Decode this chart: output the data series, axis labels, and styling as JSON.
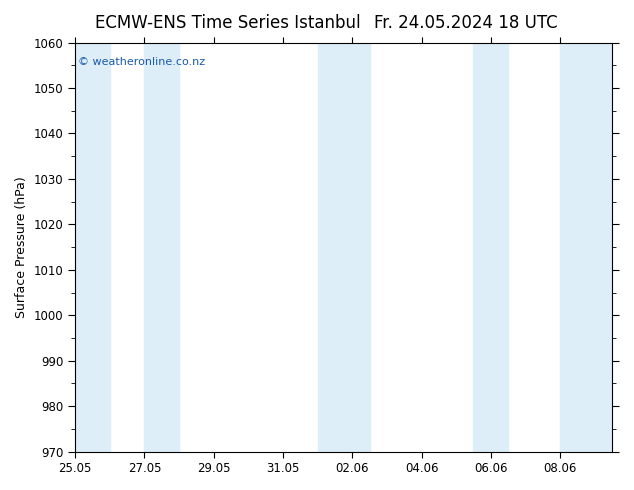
{
  "title_left": "ECMW-ENS Time Series Istanbul",
  "title_right": "Fr. 24.05.2024 18 UTC",
  "ylabel": "Surface Pressure (hPa)",
  "ylim": [
    970,
    1060
  ],
  "ytick_step": 10,
  "background_color": "#ffffff",
  "plot_bg_color": "#ffffff",
  "band_color": "#ddeef8",
  "band_definitions": [
    [
      0.0,
      1.0
    ],
    [
      2.0,
      3.0
    ],
    [
      7.0,
      8.5
    ],
    [
      11.5,
      12.5
    ],
    [
      14.0,
      15.5
    ]
  ],
  "xtick_labels": [
    "25.05",
    "27.05",
    "29.05",
    "31.05",
    "02.06",
    "04.06",
    "06.06",
    "08.06"
  ],
  "xtick_positions": [
    0,
    2,
    4,
    6,
    8,
    10,
    12,
    14
  ],
  "total_days": 15.5,
  "watermark": "© weatheronline.co.nz",
  "watermark_color": "#1a5aaa",
  "title_fontsize": 12,
  "label_fontsize": 9,
  "tick_fontsize": 8.5
}
